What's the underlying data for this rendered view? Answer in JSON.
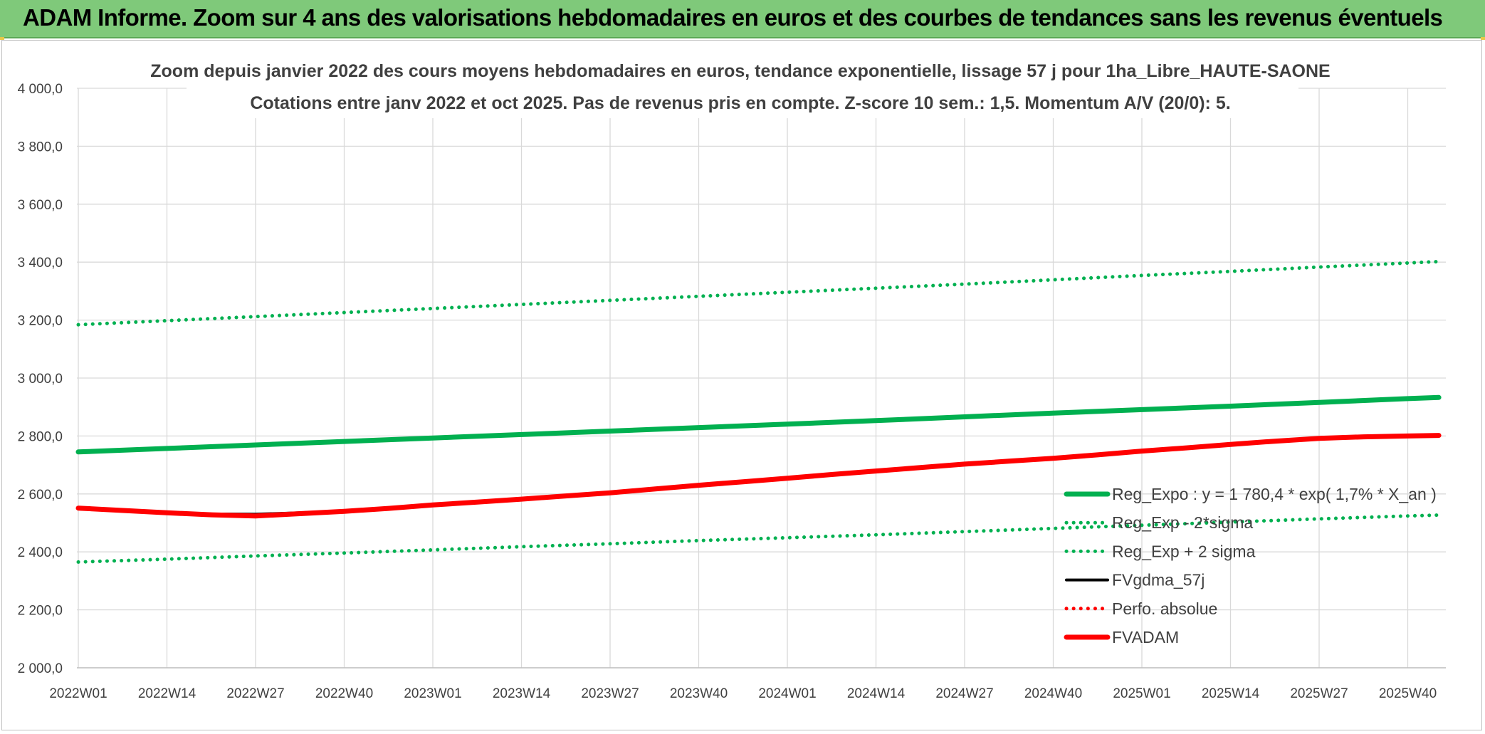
{
  "header": {
    "title": "ADAM Informe. Zoom sur 4 ans des valorisations hebdomadaires en euros et des courbes de tendances sans les revenus éventuels"
  },
  "colors": {
    "banner": "#7fc97a",
    "trend": "#00b050",
    "fv": "#ff0000",
    "gdma": "#000000",
    "grid": "#d9d9d9",
    "text": "#404040"
  },
  "chart_data": {
    "type": "line",
    "title_line1": "Zoom depuis janvier 2022 des cours moyens hebdomadaires en euros, tendance exponentielle, lissage 57 j pour 1ha_Libre_HAUTE-SAONE",
    "title_line2": "Cotations entre janv 2022 et oct 2025. Pas de revenus pris en compte. Z-score 10 sem.: 1,5. Momentum A/V (20/0): 5.",
    "ylim": [
      2000,
      4000
    ],
    "ytick_values": [
      2000,
      2200,
      2400,
      2600,
      2800,
      3000,
      3200,
      3400,
      3600,
      3800,
      4000
    ],
    "ytick_labels": [
      "2 000,0",
      "2 200,0",
      "2 400,0",
      "2 600,0",
      "2 800,0",
      "3 000,0",
      "3 200,0",
      "3 400,0",
      "3 600,0",
      "3 800,0",
      "4 000,0"
    ],
    "x_categories": [
      "2022W01",
      "2022W14",
      "2022W27",
      "2022W40",
      "2023W01",
      "2023W14",
      "2023W27",
      "2023W40",
      "2024W01",
      "2024W14",
      "2024W27",
      "2024W40",
      "2025W01",
      "2025W14",
      "2025W27",
      "2025W40"
    ],
    "x_last_index": 15.35,
    "series": [
      {
        "name": "Reg_Expo : y = 1 780,4 * exp( 1,7% *  X_an )",
        "style": "solid-thick",
        "color": "#00b050",
        "x": [
          0,
          1,
          2,
          3,
          4,
          5,
          6,
          7,
          8,
          9,
          10,
          11,
          12,
          13,
          14,
          15,
          15.35
        ],
        "values": [
          2745,
          2757,
          2769,
          2781,
          2793,
          2805,
          2817,
          2829,
          2841,
          2853,
          2866,
          2879,
          2891,
          2903,
          2916,
          2929,
          2933
        ]
      },
      {
        "name": "Reg_Exp - 2*sigma",
        "style": "dotted",
        "color": "#00b050",
        "x": [
          0,
          1,
          2,
          3,
          4,
          5,
          6,
          7,
          8,
          9,
          10,
          11,
          12,
          13,
          14,
          15,
          15.35
        ],
        "values": [
          2365,
          2375,
          2386,
          2396,
          2407,
          2418,
          2428,
          2439,
          2449,
          2459,
          2470,
          2481,
          2492,
          2503,
          2514,
          2524,
          2527
        ]
      },
      {
        "name": "Reg_Exp + 2 sigma",
        "style": "dotted",
        "color": "#00b050",
        "x": [
          0,
          1,
          2,
          3,
          4,
          5,
          6,
          7,
          8,
          9,
          10,
          11,
          12,
          13,
          14,
          15,
          15.35
        ],
        "values": [
          3184,
          3198,
          3212,
          3226,
          3240,
          3254,
          3268,
          3282,
          3296,
          3310,
          3324,
          3339,
          3354,
          3368,
          3383,
          3397,
          3402
        ]
      },
      {
        "name": "FVgdma_57j",
        "style": "solid",
        "color": "#000000",
        "x": [
          0,
          0.5,
          1,
          1.5,
          2,
          2.5,
          3,
          3.5,
          4,
          4.5,
          5,
          5.5,
          6,
          6.5,
          7,
          7.5,
          8,
          8.5,
          9,
          9.5,
          10,
          10.5,
          11,
          11.5,
          12,
          12.5,
          13,
          13.5,
          14,
          14.5,
          15,
          15.35
        ],
        "values": [
          2552,
          2544,
          2536,
          2531,
          2530,
          2535,
          2542,
          2552,
          2563,
          2573,
          2583,
          2594,
          2605,
          2618,
          2631,
          2643,
          2655,
          2668,
          2680,
          2692,
          2704,
          2714,
          2724,
          2736,
          2749,
          2760,
          2772,
          2783,
          2793,
          2797,
          2800,
          2802
        ]
      },
      {
        "name": "Perfo. absolue",
        "style": "dotted",
        "color": "#ff0000",
        "x": [],
        "values": []
      },
      {
        "name": "FVADAM",
        "style": "solid-thick",
        "color": "#ff0000",
        "x": [
          0,
          0.5,
          1,
          1.5,
          2,
          2.5,
          3,
          3.5,
          4,
          4.5,
          5,
          5.5,
          6,
          6.5,
          7,
          7.5,
          8,
          8.5,
          9,
          9.5,
          10,
          10.5,
          11,
          11.5,
          12,
          12.5,
          13,
          13.5,
          14,
          14.5,
          15,
          15.35
        ],
        "values": [
          2551,
          2543,
          2535,
          2528,
          2524,
          2532,
          2540,
          2550,
          2562,
          2572,
          2582,
          2593,
          2604,
          2617,
          2630,
          2642,
          2654,
          2667,
          2679,
          2691,
          2703,
          2713,
          2723,
          2735,
          2748,
          2759,
          2771,
          2782,
          2792,
          2797,
          2800,
          2802
        ]
      }
    ],
    "legend_position": "right-bottom"
  }
}
